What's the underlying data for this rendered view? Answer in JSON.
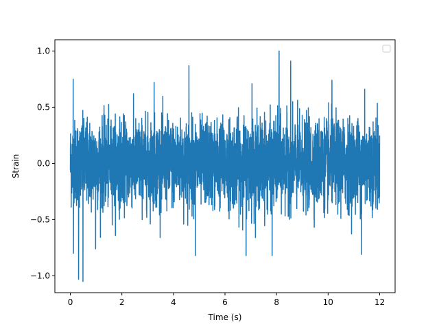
{
  "chart_data": {
    "type": "line",
    "title": "",
    "xlabel": "Time (s)",
    "ylabel": "Strain",
    "xlim": [
      -0.6,
      12.6
    ],
    "ylim": [
      -1.15,
      1.1
    ],
    "xticks": [
      0,
      2,
      4,
      6,
      8,
      10,
      12
    ],
    "xtick_labels": [
      "0",
      "2",
      "4",
      "6",
      "8",
      "10",
      "12"
    ],
    "yticks": [
      -1.0,
      -0.5,
      0.0,
      0.5,
      1.0
    ],
    "ytick_labels": [
      "−1.0",
      "−0.5",
      "0.0",
      "0.5",
      "1.0"
    ],
    "grid": false,
    "legend": {
      "placement": "top-right",
      "entries": []
    },
    "series": [
      {
        "color": "#1f77b4",
        "x_range": [
          0,
          12
        ],
        "typical_amplitude": 0.45,
        "notable_points": [
          {
            "x": 8.1,
            "y": 1.0
          },
          {
            "x": 0.49,
            "y": -1.05
          },
          {
            "x": 0.32,
            "y": -1.03
          },
          {
            "x": 4.6,
            "y": 0.87
          },
          {
            "x": 0.12,
            "y": -0.8
          },
          {
            "x": 0.11,
            "y": 0.75
          },
          {
            "x": 0.98,
            "y": -0.76
          },
          {
            "x": 6.82,
            "y": -0.82
          },
          {
            "x": 7.83,
            "y": -0.82
          },
          {
            "x": 11.3,
            "y": -0.81
          },
          {
            "x": 4.85,
            "y": -0.82
          },
          {
            "x": 10.15,
            "y": 0.74
          },
          {
            "x": 8.55,
            "y": 0.91
          },
          {
            "x": 3.25,
            "y": 0.72
          },
          {
            "x": 7.05,
            "y": 0.71
          },
          {
            "x": 11.42,
            "y": 0.66
          }
        ]
      }
    ]
  }
}
